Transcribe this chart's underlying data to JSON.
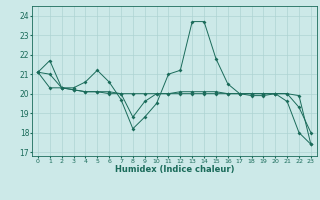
{
  "xlabel": "Humidex (Indice chaleur)",
  "background_color": "#cce9e8",
  "grid_color": "#aed4d3",
  "line_color": "#1a6b5a",
  "xlim": [
    -0.5,
    23.5
  ],
  "ylim": [
    16.8,
    24.5
  ],
  "yticks": [
    17,
    18,
    19,
    20,
    21,
    22,
    23,
    24
  ],
  "xticks": [
    0,
    1,
    2,
    3,
    4,
    5,
    6,
    7,
    8,
    9,
    10,
    11,
    12,
    13,
    14,
    15,
    16,
    17,
    18,
    19,
    20,
    21,
    22,
    23
  ],
  "series1_x": [
    0,
    1,
    2,
    3,
    4,
    5,
    6,
    7,
    8,
    9,
    10,
    11,
    12,
    13,
    14,
    15,
    16,
    17,
    18,
    19,
    20,
    21,
    22,
    23
  ],
  "series1_y": [
    21.1,
    21.7,
    20.3,
    20.3,
    20.6,
    21.2,
    20.6,
    19.7,
    18.2,
    18.8,
    19.5,
    21.0,
    21.2,
    23.7,
    23.7,
    21.8,
    20.5,
    20.0,
    19.9,
    19.9,
    20.0,
    20.0,
    19.3,
    18.0
  ],
  "series2_x": [
    0,
    1,
    2,
    3,
    4,
    5,
    6,
    7,
    8,
    9,
    10,
    11,
    12,
    13,
    14,
    15,
    16,
    17,
    18,
    19,
    20,
    21,
    22,
    23
  ],
  "series2_y": [
    21.1,
    21.0,
    20.3,
    20.2,
    20.1,
    20.1,
    20.1,
    20.0,
    20.0,
    20.0,
    20.0,
    20.0,
    20.1,
    20.1,
    20.1,
    20.1,
    20.0,
    20.0,
    20.0,
    20.0,
    20.0,
    20.0,
    19.9,
    17.4
  ],
  "series3_x": [
    0,
    1,
    2,
    3,
    4,
    5,
    6,
    7,
    8,
    9,
    10,
    11,
    12,
    13,
    14,
    15,
    16,
    17,
    18,
    19,
    20,
    21,
    22,
    23
  ],
  "series3_y": [
    21.1,
    20.3,
    20.3,
    20.2,
    20.1,
    20.1,
    20.0,
    20.0,
    18.8,
    19.6,
    20.0,
    20.0,
    20.0,
    20.0,
    20.0,
    20.0,
    20.0,
    20.0,
    20.0,
    20.0,
    20.0,
    19.6,
    18.0,
    17.4
  ]
}
